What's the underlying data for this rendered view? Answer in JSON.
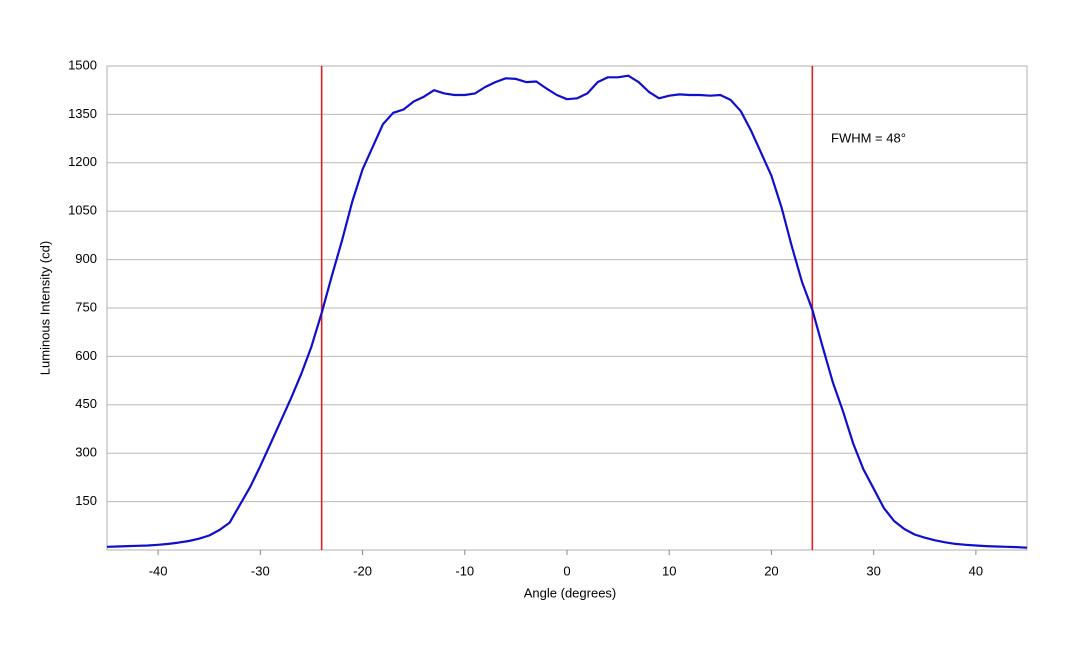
{
  "chart_data": {
    "type": "line",
    "x_label": "Angle (degrees)",
    "y_label": "Luminous Intensity (cd)",
    "annotation": "FWHM = 48°",
    "x": [
      -45,
      -44,
      -43,
      -42,
      -41,
      -40,
      -39,
      -38,
      -37,
      -36,
      -35,
      -34,
      -33,
      -32,
      -31,
      -30,
      -29,
      -28,
      -27,
      -26,
      -25,
      -24,
      -23,
      -22,
      -21,
      -20,
      -19,
      -18,
      -17,
      -16,
      -15,
      -14,
      -13,
      -12,
      -11,
      -10,
      -9,
      -8,
      -7,
      -6,
      -5,
      -4,
      -3,
      -2,
      -1,
      0,
      1,
      2,
      3,
      4,
      5,
      6,
      7,
      8,
      9,
      10,
      11,
      12,
      13,
      14,
      15,
      16,
      17,
      18,
      19,
      20,
      21,
      22,
      23,
      24,
      25,
      26,
      27,
      28,
      29,
      30,
      31,
      32,
      33,
      34,
      35,
      36,
      37,
      38,
      39,
      40,
      41,
      42,
      43,
      44,
      45
    ],
    "series": [
      {
        "name": "Luminous Intensity",
        "color": "#1010cc",
        "values": [
          10,
          11,
          12,
          13,
          14,
          16,
          19,
          23,
          28,
          35,
          45,
          62,
          85,
          140,
          195,
          260,
          330,
          400,
          470,
          545,
          630,
          735,
          850,
          960,
          1080,
          1180,
          1250,
          1320,
          1355,
          1365,
          1390,
          1405,
          1425,
          1415,
          1410,
          1410,
          1415,
          1435,
          1450,
          1462,
          1460,
          1450,
          1452,
          1430,
          1410,
          1397,
          1400,
          1415,
          1450,
          1465,
          1465,
          1470,
          1450,
          1420,
          1400,
          1408,
          1412,
          1410,
          1410,
          1408,
          1410,
          1395,
          1360,
          1300,
          1230,
          1160,
          1060,
          940,
          830,
          745,
          630,
          520,
          430,
          330,
          250,
          190,
          130,
          90,
          65,
          48,
          38,
          30,
          24,
          19,
          16,
          14,
          12,
          11,
          10,
          9,
          7
        ]
      }
    ],
    "reference_lines": {
      "x": [
        -24,
        24
      ],
      "color": "#e02020"
    },
    "xlim": [
      -45,
      45
    ],
    "xticks": [
      -40,
      -30,
      -20,
      -10,
      0,
      10,
      20,
      30,
      40
    ],
    "ylim": [
      0,
      1500
    ],
    "yticks": [
      150,
      300,
      450,
      600,
      750,
      900,
      1050,
      1200,
      1350,
      1500
    ],
    "grid": true
  }
}
